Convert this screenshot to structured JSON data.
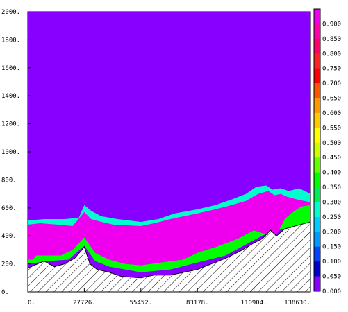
{
  "chart_data": {
    "type": "heatmap",
    "title": "",
    "xlabel": "",
    "ylabel": "",
    "xlim": [
      0,
      138630
    ],
    "ylim": [
      0,
      2000
    ],
    "x_tick_labels": [
      "0.",
      "27726.",
      "55452.",
      "83178.",
      "110904.",
      "138630."
    ],
    "x_tick_values": [
      0,
      27726,
      55452,
      83178,
      110904,
      138630
    ],
    "y_tick_labels": [
      "0.",
      "200.",
      "400.",
      "600.",
      "800.",
      "1000.",
      "1200.",
      "1400.",
      "1600.",
      "1800.",
      "2000."
    ],
    "y_tick_values": [
      0,
      200,
      400,
      600,
      800,
      1000,
      1200,
      1400,
      1600,
      1800,
      2000
    ],
    "colorbar": {
      "labels": [
        "0.900",
        "0.850",
        "0.800",
        "0.750",
        "0.700",
        "0.650",
        "0.600",
        "0.550",
        "0.500",
        "0.450",
        "0.400",
        "0.350",
        "0.300",
        "0.250",
        "0.200",
        "0.150",
        "0.100",
        "0.050",
        "0.000"
      ],
      "colors": [
        "#ee00ee",
        "#ff00aa",
        "#ff0066",
        "#ff2222",
        "#ff0000",
        "#ff5500",
        "#ff9900",
        "#ffcc00",
        "#ffff00",
        "#ccff00",
        "#66ff00",
        "#00ff00",
        "#00ee55",
        "#00ffcc",
        "#00ccff",
        "#0099ff",
        "#0044ff",
        "#0000cc",
        "#8800ff"
      ]
    },
    "background_color": "#8800ff",
    "terrain": {
      "pattern": "diagonal-hatch",
      "profile": [
        [
          0,
          170
        ],
        [
          8000,
          220
        ],
        [
          13000,
          180
        ],
        [
          18000,
          200
        ],
        [
          23000,
          240
        ],
        [
          27726,
          320
        ],
        [
          30500,
          200
        ],
        [
          34000,
          160
        ],
        [
          40000,
          140
        ],
        [
          46000,
          110
        ],
        [
          55452,
          100
        ],
        [
          62000,
          120
        ],
        [
          70000,
          120
        ],
        [
          83178,
          160
        ],
        [
          90000,
          200
        ],
        [
          97000,
          240
        ],
        [
          104000,
          290
        ],
        [
          110904,
          350
        ],
        [
          115000,
          380
        ],
        [
          119000,
          440
        ],
        [
          122000,
          400
        ],
        [
          126000,
          450
        ],
        [
          131000,
          470
        ],
        [
          138630,
          500
        ]
      ]
    },
    "fields": [
      {
        "name": "band-low",
        "value": 0.0,
        "color": "#8800ff",
        "polygon": [
          [
            0,
            200
          ],
          [
            10000,
            220
          ],
          [
            20000,
            230
          ],
          [
            27726,
            330
          ],
          [
            33000,
            220
          ],
          [
            40000,
            180
          ],
          [
            55452,
            140
          ],
          [
            70000,
            160
          ],
          [
            83178,
            210
          ],
          [
            97000,
            260
          ],
          [
            110904,
            370
          ],
          [
            118000,
            420
          ],
          [
            126000,
            420
          ],
          [
            138630,
            500
          ],
          [
            138630,
            470
          ],
          [
            126000,
            430
          ],
          [
            119000,
            400
          ],
          [
            110904,
            330
          ],
          [
            97000,
            220
          ],
          [
            83178,
            170
          ],
          [
            70000,
            110
          ],
          [
            55452,
            90
          ],
          [
            40000,
            120
          ],
          [
            33000,
            150
          ],
          [
            27726,
            300
          ],
          [
            20000,
            200
          ],
          [
            10000,
            200
          ],
          [
            0,
            160
          ]
        ]
      },
      {
        "name": "green-edge-lower",
        "value": 0.35,
        "color": "#00ff00",
        "polygon": [
          [
            0,
            230
          ],
          [
            2500,
            230
          ],
          [
            4000,
            260
          ],
          [
            16000,
            260
          ],
          [
            22000,
            300
          ],
          [
            27726,
            390
          ],
          [
            33000,
            280
          ],
          [
            40000,
            230
          ],
          [
            48000,
            200
          ],
          [
            55452,
            190
          ],
          [
            65000,
            210
          ],
          [
            76000,
            230
          ],
          [
            83178,
            280
          ],
          [
            92000,
            320
          ],
          [
            103000,
            380
          ],
          [
            110904,
            440
          ],
          [
            115000,
            420
          ],
          [
            122000,
            410
          ],
          [
            126000,
            520
          ],
          [
            129000,
            560
          ],
          [
            134000,
            610
          ],
          [
            138630,
            620
          ],
          [
            138630,
            500
          ],
          [
            126000,
            450
          ],
          [
            119000,
            430
          ],
          [
            110904,
            370
          ],
          [
            97000,
            260
          ],
          [
            83178,
            210
          ],
          [
            70000,
            160
          ],
          [
            55452,
            140
          ],
          [
            40000,
            180
          ],
          [
            33000,
            220
          ],
          [
            27726,
            330
          ],
          [
            20000,
            230
          ],
          [
            10000,
            220
          ],
          [
            0,
            200
          ]
        ]
      },
      {
        "name": "magenta-core",
        "value": 0.9,
        "color": "#ee00ee",
        "polygon": [
          [
            0,
            480
          ],
          [
            6000,
            490
          ],
          [
            15000,
            480
          ],
          [
            22000,
            470
          ],
          [
            27726,
            570
          ],
          [
            31000,
            520
          ],
          [
            36000,
            500
          ],
          [
            42000,
            480
          ],
          [
            55452,
            470
          ],
          [
            62000,
            490
          ],
          [
            70000,
            520
          ],
          [
            83178,
            560
          ],
          [
            92000,
            590
          ],
          [
            100000,
            620
          ],
          [
            107000,
            650
          ],
          [
            113000,
            700
          ],
          [
            118000,
            720
          ],
          [
            121000,
            690
          ],
          [
            124000,
            700
          ],
          [
            127000,
            680
          ],
          [
            132000,
            660
          ],
          [
            138630,
            640
          ],
          [
            138630,
            620
          ],
          [
            134000,
            610
          ],
          [
            129000,
            560
          ],
          [
            126000,
            520
          ],
          [
            122000,
            410
          ],
          [
            115000,
            420
          ],
          [
            110904,
            440
          ],
          [
            103000,
            380
          ],
          [
            92000,
            320
          ],
          [
            83178,
            280
          ],
          [
            76000,
            230
          ],
          [
            65000,
            210
          ],
          [
            55452,
            190
          ],
          [
            48000,
            200
          ],
          [
            40000,
            230
          ],
          [
            33000,
            280
          ],
          [
            27726,
            390
          ],
          [
            22000,
            300
          ],
          [
            16000,
            260
          ],
          [
            4000,
            260
          ],
          [
            2500,
            230
          ],
          [
            0,
            230
          ]
        ]
      },
      {
        "name": "upper-edge-cyan",
        "value": 0.25,
        "color": "#00ffcc",
        "polygon": [
          [
            0,
            510
          ],
          [
            8000,
            520
          ],
          [
            18000,
            520
          ],
          [
            25000,
            530
          ],
          [
            27726,
            620
          ],
          [
            31000,
            580
          ],
          [
            36000,
            540
          ],
          [
            44000,
            520
          ],
          [
            55452,
            500
          ],
          [
            64000,
            520
          ],
          [
            72000,
            560
          ],
          [
            83178,
            590
          ],
          [
            92000,
            620
          ],
          [
            100000,
            660
          ],
          [
            107000,
            700
          ],
          [
            112000,
            750
          ],
          [
            117000,
            760
          ],
          [
            120000,
            730
          ],
          [
            124000,
            740
          ],
          [
            128000,
            720
          ],
          [
            133000,
            740
          ],
          [
            138630,
            700
          ],
          [
            138630,
            640
          ],
          [
            132000,
            660
          ],
          [
            127000,
            680
          ],
          [
            124000,
            700
          ],
          [
            121000,
            690
          ],
          [
            118000,
            720
          ],
          [
            113000,
            700
          ],
          [
            107000,
            650
          ],
          [
            100000,
            620
          ],
          [
            92000,
            590
          ],
          [
            83178,
            560
          ],
          [
            70000,
            520
          ],
          [
            62000,
            490
          ],
          [
            55452,
            470
          ],
          [
            42000,
            480
          ],
          [
            36000,
            500
          ],
          [
            31000,
            520
          ],
          [
            27726,
            570
          ],
          [
            22000,
            470
          ],
          [
            15000,
            480
          ],
          [
            6000,
            490
          ],
          [
            0,
            480
          ]
        ]
      }
    ]
  }
}
